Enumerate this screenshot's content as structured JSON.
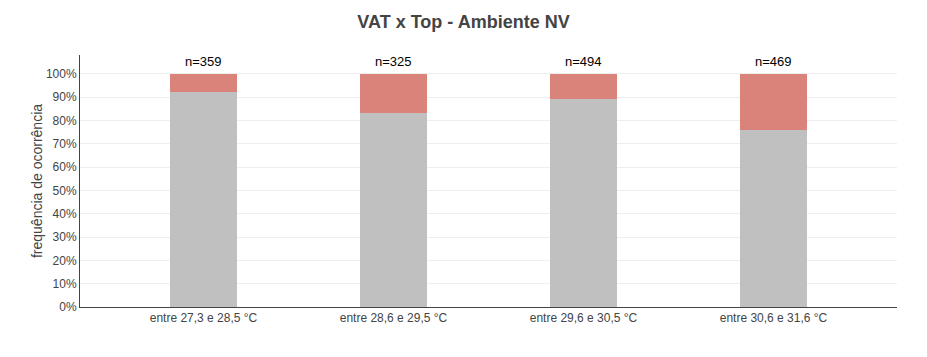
{
  "chart_data": {
    "type": "bar",
    "stacked": true,
    "title": "VAT x Top - Ambiente NV",
    "ylabel": "frequência de ocorrência",
    "categories": [
      "entre 27,3 e 28,5 °C",
      "entre 28,6 e 29,5 °C",
      "entre 29,6 e 30,5 °C",
      "entre 30,6 e 31,6 °C"
    ],
    "series": [
      {
        "color": "#c0c0c0",
        "values": [
          0.92,
          0.83,
          0.89,
          0.76
        ]
      },
      {
        "color": "#d9837a",
        "values": [
          0.08,
          0.17,
          0.11,
          0.24
        ]
      }
    ],
    "annotations": [
      "n=359",
      "n=325",
      "n=494",
      "n=469"
    ],
    "ylim": [
      0,
      1.08
    ],
    "yticks": [
      {
        "value": 0.0,
        "label": "0%"
      },
      {
        "value": 0.1,
        "label": "10%"
      },
      {
        "value": 0.2,
        "label": "20%"
      },
      {
        "value": 0.3,
        "label": "30%"
      },
      {
        "value": 0.4,
        "label": "40%"
      },
      {
        "value": 0.5,
        "label": "50%"
      },
      {
        "value": 0.6,
        "label": "60%"
      },
      {
        "value": 0.7,
        "label": "70%"
      },
      {
        "value": 0.8,
        "label": "80%"
      },
      {
        "value": 0.9,
        "label": "90%"
      },
      {
        "value": 1.0,
        "label": "100%"
      }
    ],
    "grid": true
  }
}
